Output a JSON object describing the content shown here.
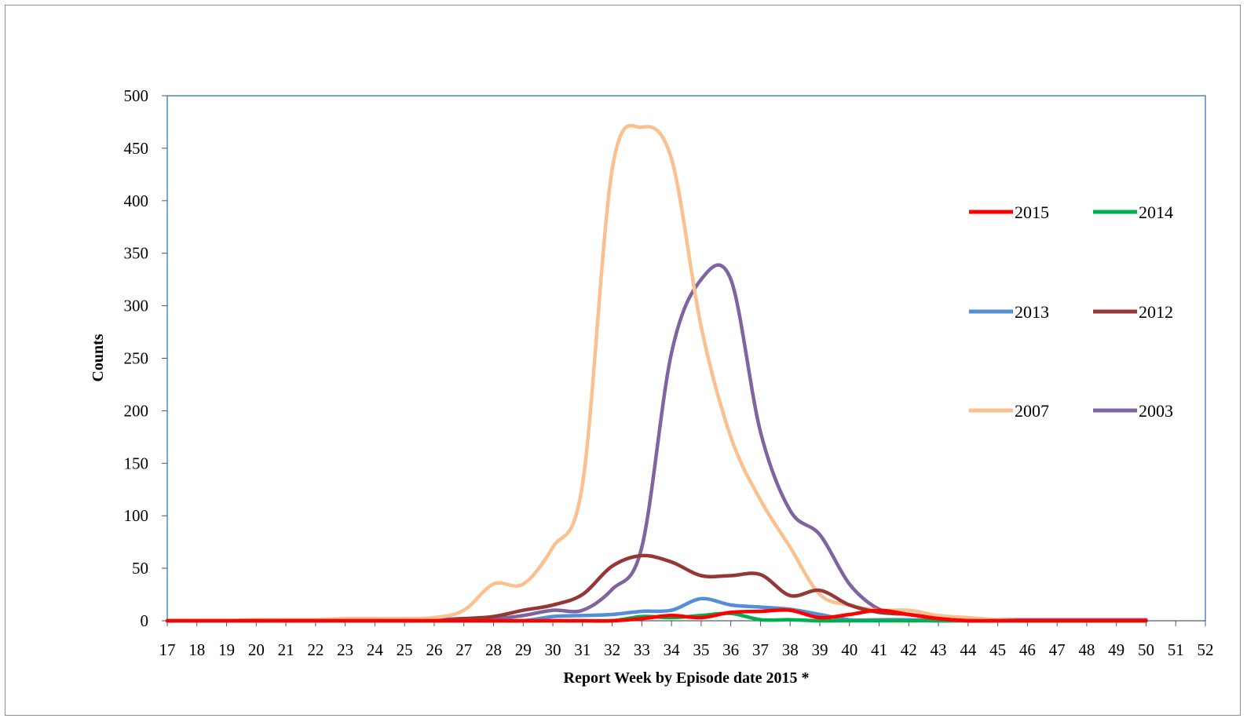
{
  "chart_data": {
    "type": "line",
    "title": "",
    "xlabel": "Report Week by Episode date 2015 *",
    "ylabel": "Counts",
    "ylim": [
      0,
      500
    ],
    "yticks": [
      0,
      50,
      100,
      150,
      200,
      250,
      300,
      350,
      400,
      450,
      500
    ],
    "x": [
      17,
      18,
      19,
      20,
      21,
      22,
      23,
      24,
      25,
      26,
      27,
      28,
      29,
      30,
      31,
      32,
      33,
      34,
      35,
      36,
      37,
      38,
      39,
      40,
      41,
      42,
      43,
      44,
      45,
      46,
      47,
      48,
      49,
      50,
      51,
      52
    ],
    "x_range": [
      17,
      52
    ],
    "grid": false,
    "legend_position": "right",
    "series": [
      {
        "name": "2015",
        "color": "#ff0000",
        "values": [
          0,
          0,
          0,
          0,
          0,
          0,
          0,
          0,
          0,
          0,
          0,
          0,
          0,
          0,
          0,
          0,
          2,
          5,
          3,
          8,
          9,
          10,
          3,
          6,
          10,
          6,
          2,
          0,
          0,
          0,
          0,
          0,
          0,
          0,
          null,
          null
        ]
      },
      {
        "name": "2014",
        "color": "#00b050",
        "values": [
          0,
          0,
          0,
          0,
          0,
          0,
          0,
          0,
          0,
          0,
          0,
          0,
          0,
          0,
          0,
          0,
          4,
          3,
          5,
          7,
          1,
          1,
          0,
          0,
          0,
          0,
          0,
          0,
          0,
          0,
          0,
          0,
          0,
          0,
          null,
          null
        ]
      },
      {
        "name": "2013",
        "color": "#558ed5",
        "values": [
          0,
          0,
          0,
          0,
          0,
          0,
          0,
          0,
          0,
          0,
          0,
          0,
          0,
          4,
          5,
          6,
          9,
          10,
          21,
          15,
          13,
          11,
          6,
          1,
          1,
          1,
          0,
          0,
          0,
          0,
          0,
          0,
          0,
          0,
          null,
          null
        ]
      },
      {
        "name": "2012",
        "color": "#953735",
        "values": [
          0,
          0,
          0,
          0,
          0,
          0,
          0,
          0,
          0,
          0,
          2,
          4,
          10,
          15,
          25,
          52,
          62,
          56,
          43,
          43,
          44,
          24,
          29,
          15,
          8,
          6,
          2,
          0,
          0,
          0,
          0,
          0,
          0,
          0,
          null,
          null
        ]
      },
      {
        "name": "2007",
        "color": "#fac090",
        "values": [
          0,
          0,
          0,
          1,
          1,
          1,
          2,
          2,
          2,
          3,
          10,
          35,
          35,
          70,
          130,
          430,
          470,
          440,
          280,
          175,
          115,
          70,
          25,
          15,
          10,
          10,
          5,
          3,
          1,
          0,
          0,
          0,
          0,
          0,
          null,
          null
        ]
      },
      {
        "name": "2003",
        "color": "#8064a2",
        "values": [
          0,
          0,
          0,
          0,
          0,
          1,
          1,
          1,
          1,
          1,
          2,
          2,
          5,
          10,
          10,
          30,
          70,
          255,
          325,
          325,
          180,
          105,
          82,
          35,
          11,
          6,
          3,
          2,
          1,
          1,
          1,
          1,
          1,
          1,
          null,
          null
        ]
      }
    ]
  }
}
